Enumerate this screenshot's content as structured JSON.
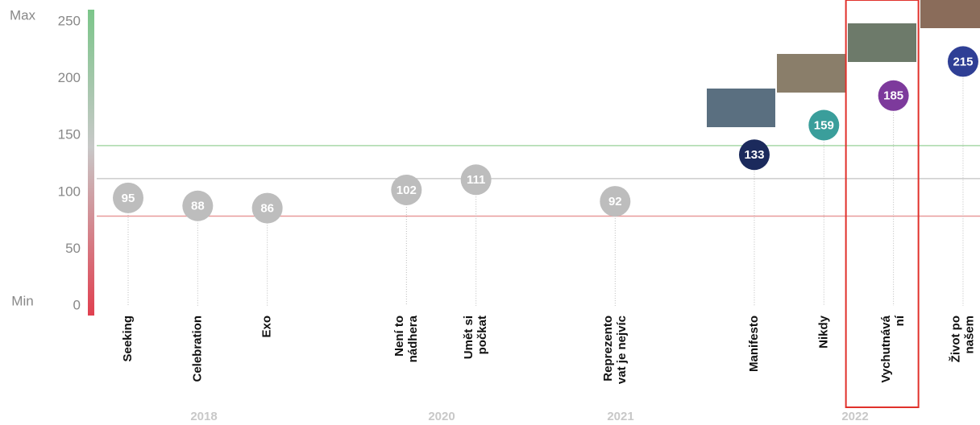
{
  "chart_data": {
    "type": "bubble-timeline",
    "y_max_label": "Max",
    "y_min_label": "Min",
    "categories": [
      [
        "Seeking"
      ],
      [
        "Celebration"
      ],
      [
        "Exo"
      ],
      null,
      [
        "Není to",
        "nádhera"
      ],
      [
        "Umět si",
        "počkat"
      ],
      null,
      [
        "Reprezento",
        "vat je nejvíc"
      ],
      null,
      [
        "Manifesto"
      ],
      [
        "Nikdy"
      ],
      [
        "Vychutnává",
        "ní"
      ],
      [
        "Život po",
        "našem"
      ]
    ],
    "values": [
      95,
      88,
      86,
      null,
      102,
      111,
      null,
      92,
      null,
      133,
      159,
      185,
      215
    ],
    "colors": [
      "#bdbdbd",
      "#bdbdbd",
      "#bdbdbd",
      null,
      "#bdbdbd",
      "#bdbdbd",
      null,
      "#bdbdbd",
      null,
      "#1b2a5c",
      "#3a9e9b",
      "#7d3a9c",
      "#2f3f95"
    ],
    "years": [
      "2018",
      "2020",
      "2021",
      "2022"
    ],
    "reference_lines": [
      {
        "value": 141,
        "color": "#a8d8a8"
      },
      {
        "value": 112,
        "color": "#cccccc"
      },
      {
        "value": 79,
        "color": "#e89a9a"
      }
    ],
    "highlight_color": "#e0312b",
    "ylim": [
      0,
      250
    ],
    "yticks": [
      0,
      50,
      100,
      150,
      200,
      250
    ]
  }
}
